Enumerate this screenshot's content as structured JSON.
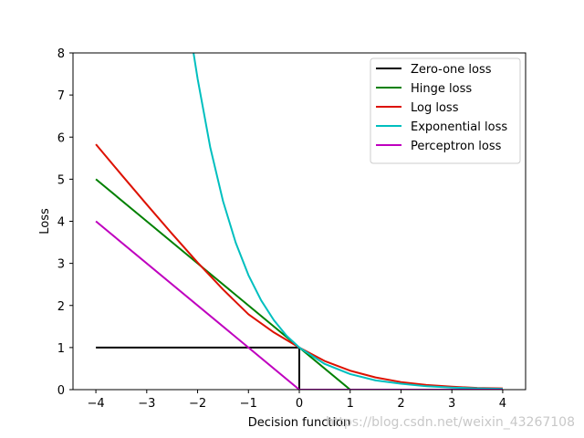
{
  "chart_data": {
    "type": "line",
    "title": "",
    "xlabel": "Decision function",
    "ylabel": "Loss",
    "xlim": [
      -4.45,
      4.45
    ],
    "ylim": [
      0,
      8
    ],
    "xticks": [
      -4,
      -3,
      -2,
      -1,
      0,
      1,
      2,
      3,
      4
    ],
    "yticks": [
      0,
      1,
      2,
      3,
      4,
      5,
      6,
      7,
      8
    ],
    "grid": false,
    "legend_position": "top-right",
    "series": [
      {
        "name": "Zero-one loss",
        "color": "#000000",
        "x": [
          -4,
          0,
          0,
          4
        ],
        "y": [
          1,
          1,
          0,
          0
        ]
      },
      {
        "name": "Hinge loss",
        "color": "#008000",
        "x": [
          -4,
          -3,
          -2,
          -1,
          0,
          1,
          2,
          3,
          4
        ],
        "y": [
          5,
          4,
          3,
          2,
          1,
          0,
          0,
          0,
          0
        ]
      },
      {
        "name": "Log loss",
        "color": "#dd1100",
        "x": [
          -4,
          -3.5,
          -3,
          -2.5,
          -2,
          -1.5,
          -1,
          -0.5,
          0,
          0.5,
          1,
          1.5,
          2,
          2.5,
          3,
          3.5,
          4
        ],
        "y": [
          5.83,
          5.11,
          4.4,
          3.7,
          3.02,
          2.38,
          1.79,
          1.36,
          1.0,
          0.68,
          0.45,
          0.29,
          0.18,
          0.11,
          0.07,
          0.04,
          0.03
        ]
      },
      {
        "name": "Exponential loss",
        "color": "#00bfbf",
        "x": [
          -2.08,
          -2.0,
          -1.75,
          -1.5,
          -1.25,
          -1.0,
          -0.75,
          -0.5,
          -0.25,
          0,
          0.5,
          1,
          1.5,
          2,
          2.5,
          3,
          3.5,
          4
        ],
        "y": [
          8.0,
          7.39,
          5.75,
          4.48,
          3.49,
          2.72,
          2.12,
          1.65,
          1.28,
          1.0,
          0.61,
          0.37,
          0.22,
          0.14,
          0.08,
          0.05,
          0.03,
          0.02
        ]
      },
      {
        "name": "Perceptron loss",
        "color": "#bf00bf",
        "x": [
          -4,
          0,
          4
        ],
        "y": [
          4,
          0,
          0
        ]
      }
    ],
    "watermark": "https://blog.csdn.net/weixin_43267108"
  }
}
